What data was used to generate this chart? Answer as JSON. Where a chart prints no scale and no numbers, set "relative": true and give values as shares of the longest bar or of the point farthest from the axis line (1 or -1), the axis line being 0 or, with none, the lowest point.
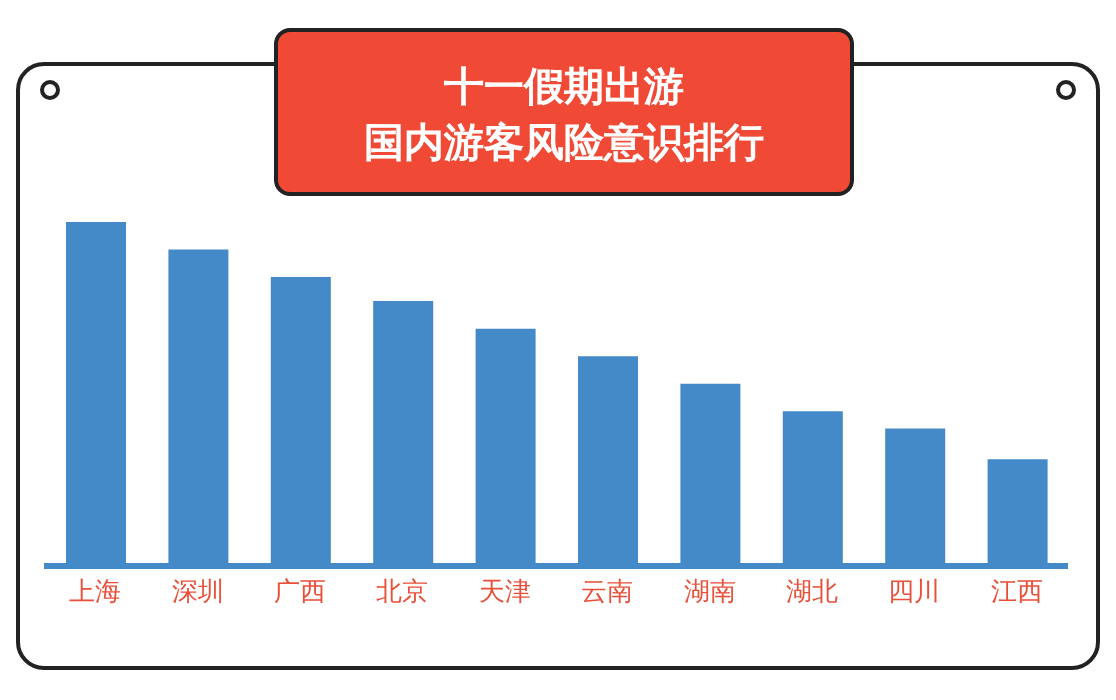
{
  "chart_data": {
    "type": "bar",
    "title": "十一假期出游",
    "subtitle": "国内游客风险意识排行",
    "relative": true,
    "categories": [
      "上海",
      "深圳",
      "广西",
      "北京",
      "天津",
      "云南",
      "湖南",
      "湖北",
      "四川",
      "江西"
    ],
    "values": [
      1,
      0.92,
      0.84,
      0.77,
      0.69,
      0.61,
      0.53,
      0.45,
      0.4,
      0.31
    ],
    "color": "#4489c8",
    "grid": false,
    "legend": false
  }
}
